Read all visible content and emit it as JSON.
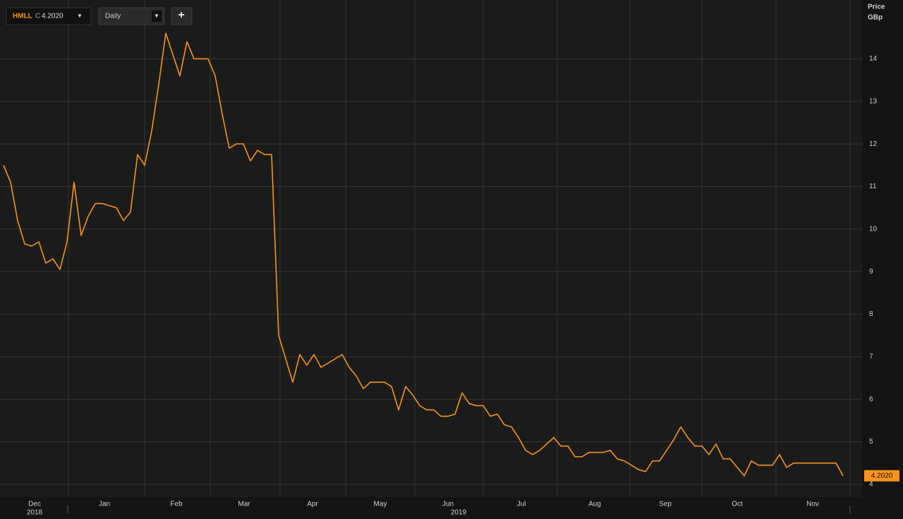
{
  "toolbar": {
    "symbol": "HMLL",
    "field": "C",
    "price": "4.2020",
    "interval": "Daily",
    "add": "+"
  },
  "chart_data": {
    "type": "line",
    "axis_title": [
      "Price",
      "GBp"
    ],
    "series": [
      {
        "name": "HMLL",
        "color": "#f7931e",
        "values": [
          11.5,
          11.1,
          10.2,
          9.65,
          9.6,
          9.7,
          9.2,
          9.3,
          9.05,
          9.7,
          11.1,
          9.85,
          10.3,
          10.6,
          10.6,
          10.55,
          10.5,
          10.2,
          10.4,
          11.75,
          11.5,
          12.3,
          13.4,
          14.6,
          14.1,
          13.6,
          14.4,
          14.0,
          14.0,
          14.0,
          13.6,
          12.7,
          11.9,
          12.0,
          12.0,
          11.6,
          11.85,
          11.75,
          11.75,
          7.5,
          6.95,
          6.4,
          7.05,
          6.8,
          7.05,
          6.75,
          6.85,
          6.95,
          7.05,
          6.75,
          6.55,
          6.25,
          6.4,
          6.4,
          6.4,
          6.3,
          5.75,
          6.3,
          6.1,
          5.85,
          5.75,
          5.75,
          5.6,
          5.6,
          5.65,
          6.15,
          5.9,
          5.85,
          5.85,
          5.6,
          5.65,
          5.4,
          5.35,
          5.1,
          4.8,
          4.7,
          4.8,
          4.95,
          5.1,
          4.9,
          4.9,
          4.65,
          4.65,
          4.75,
          4.75,
          4.75,
          4.8,
          4.6,
          4.55,
          4.45,
          4.35,
          4.3,
          4.55,
          4.55,
          4.8,
          5.05,
          5.35,
          5.1,
          4.9,
          4.9,
          4.7,
          4.95,
          4.6,
          4.6,
          4.4,
          4.2,
          4.55,
          4.45,
          4.45,
          4.45,
          4.7,
          4.4,
          4.5,
          4.5,
          4.5,
          4.5,
          4.5,
          4.5,
          4.5,
          4.202
        ]
      }
    ],
    "xticks": [
      {
        "value": 4.4,
        "label": "Dec"
      },
      {
        "value": 14.3,
        "label": "Jan"
      },
      {
        "value": 24.5,
        "label": "Feb"
      },
      {
        "value": 34.1,
        "label": "Mar"
      },
      {
        "value": 43.8,
        "label": "Apr"
      },
      {
        "value": 53.4,
        "label": "May"
      },
      {
        "value": 63,
        "label": "Jun"
      },
      {
        "value": 73.4,
        "label": "Jul"
      },
      {
        "value": 83.8,
        "label": "Aug"
      },
      {
        "value": 93.8,
        "label": "Sep"
      },
      {
        "value": 104,
        "label": "Oct"
      },
      {
        "value": 114.7,
        "label": "Nov"
      }
    ],
    "years": [
      {
        "value": 4.4,
        "label": "2018"
      },
      {
        "value": 64.5,
        "label": "2019"
      }
    ],
    "ylim": [
      3.7,
      15.3
    ],
    "yticks": [
      4,
      5,
      6,
      7,
      8,
      9,
      10,
      11,
      12,
      13,
      14
    ],
    "grid": true
  }
}
